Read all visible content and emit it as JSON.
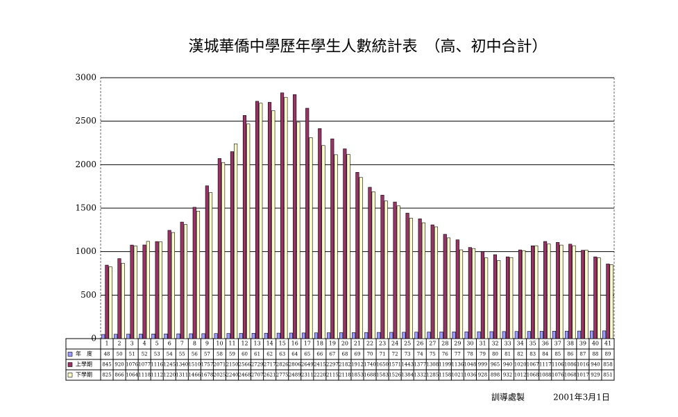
{
  "chart_data": {
    "type": "bar",
    "title": "漢城華僑中學歷年學生人數統計表　（高、初中合計）",
    "categories": [
      "1",
      "2",
      "3",
      "4",
      "5",
      "6",
      "7",
      "8",
      "9",
      "10",
      "11",
      "12",
      "13",
      "14",
      "15",
      "16",
      "17",
      "18",
      "19",
      "20",
      "21",
      "22",
      "23",
      "24",
      "25",
      "26",
      "27",
      "28",
      "29",
      "30",
      "31",
      "32",
      "33",
      "34",
      "35",
      "36",
      "37",
      "38",
      "39",
      "40",
      "41"
    ],
    "series": [
      {
        "name": "年　度",
        "color": "#9999ff",
        "values": [
          48,
          50,
          51,
          52,
          53,
          54,
          55,
          56,
          57,
          58,
          59,
          60,
          61,
          62,
          63,
          64,
          65,
          66,
          67,
          68,
          69,
          70,
          71,
          72,
          73,
          74,
          75,
          76,
          77,
          78,
          79,
          80,
          81,
          82,
          83,
          84,
          85,
          86,
          87,
          88,
          89
        ]
      },
      {
        "name": "上學期",
        "color": "#993366",
        "values": [
          845,
          920,
          1076,
          1077,
          1116,
          1245,
          1340,
          1510,
          1757,
          2071,
          2150,
          2566,
          2729,
          2717,
          2826,
          2806,
          2649,
          2415,
          2297,
          2182,
          1912,
          1740,
          1650,
          1571,
          1443,
          1377,
          1308,
          1199,
          1136,
          1048,
          999,
          965,
          940,
          1020,
          1067,
          1117,
          1106,
          1086,
          1016,
          940,
          858
        ]
      },
      {
        "name": "下學期",
        "color": "#ffffcc",
        "values": [
          825,
          866,
          1064,
          1118,
          1112,
          1220,
          1311,
          1466,
          1678,
          2025,
          2240,
          2468,
          2707,
          2621,
          2775,
          2489,
          2311,
          2220,
          2115,
          2118,
          1853,
          1688,
          1583,
          1526,
          1384,
          1332,
          1285,
          1158,
          1021,
          1036,
          928,
          898,
          932,
          1012,
          1068,
          1088,
          1076,
          1068,
          1017,
          929,
          851
        ]
      }
    ],
    "ylim": [
      0,
      3000
    ],
    "yticks": [
      0,
      500,
      1000,
      1500,
      2000,
      2500,
      3000
    ],
    "grid": true,
    "annotations": [
      "訓導處製",
      "2001年3月1日"
    ]
  }
}
